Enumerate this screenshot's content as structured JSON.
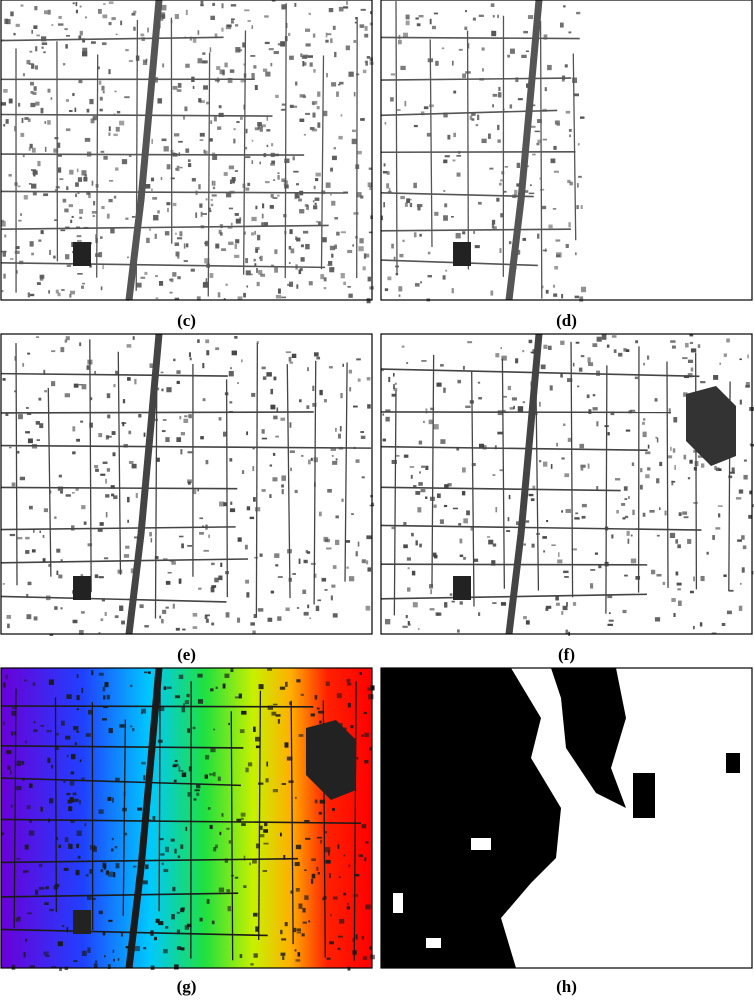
{
  "panels": [
    {
      "label": "(c)"
    },
    {
      "label": "(d)"
    },
    {
      "label": "(e)"
    },
    {
      "label": "(f)"
    },
    {
      "label": "(g)"
    },
    {
      "label": "(h)"
    }
  ]
}
